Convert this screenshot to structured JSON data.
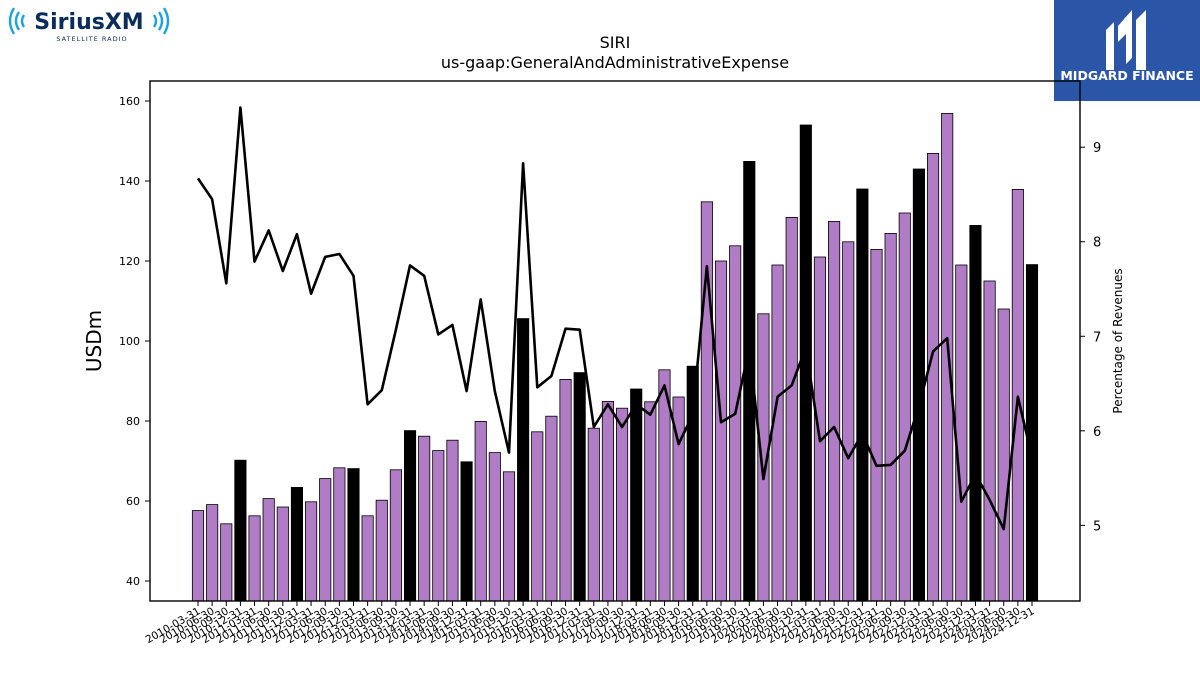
{
  "brand_left": {
    "name": "SiriusXM",
    "tagline": "SATELLITE RADIO",
    "accent": "#1aa3dc",
    "text_color": "#0b2d5c"
  },
  "brand_right": {
    "name": "MIDGARD FINANCE",
    "background": "#2b56a8"
  },
  "chart_data": {
    "type": "bar",
    "title": "SIRI",
    "subtitle": "us-gaap:GeneralAndAdministrativeExpense",
    "ylabel": "USDm",
    "y2label": "Percentage of Revenues",
    "ylim": [
      35,
      165
    ],
    "y2lim": [
      4.2,
      9.7
    ],
    "yticks": [
      40,
      60,
      80,
      100,
      120,
      140,
      160
    ],
    "y2ticks": [
      5,
      6,
      7,
      8,
      9
    ],
    "colors": {
      "quarter_bar": "#b07cc6",
      "annual_bar": "#000000",
      "line": "#000000"
    },
    "categories": [
      "2010-03-31",
      "2010-06-30",
      "2010-09-30",
      "2010-12-31",
      "2011-03-31",
      "2011-06-30",
      "2011-09-30",
      "2011-12-31",
      "2012-03-31",
      "2012-06-30",
      "2012-09-30",
      "2012-12-31",
      "2013-03-31",
      "2013-06-30",
      "2013-09-30",
      "2013-12-31",
      "2014-03-31",
      "2014-06-30",
      "2014-09-30",
      "2014-12-31",
      "2015-03-31",
      "2015-06-30",
      "2015-09-30",
      "2015-12-31",
      "2016-03-31",
      "2016-06-30",
      "2016-09-30",
      "2016-12-31",
      "2017-03-31",
      "2017-06-30",
      "2017-09-30",
      "2017-12-31",
      "2018-03-31",
      "2018-06-30",
      "2018-09-30",
      "2018-12-31",
      "2019-03-31",
      "2019-06-30",
      "2019-09-30",
      "2019-12-31",
      "2020-03-31",
      "2020-06-30",
      "2020-09-30",
      "2020-12-31",
      "2021-03-31",
      "2021-06-30",
      "2021-09-30",
      "2021-12-31",
      "2022-03-31",
      "2022-06-30",
      "2022-09-30",
      "2022-12-31",
      "2023-03-31",
      "2023-06-30",
      "2023-09-30",
      "2023-12-31",
      "2024-03-31",
      "2024-06-30",
      "2024-09-30",
      "2024-12-31"
    ],
    "annual_flags": [
      0,
      0,
      0,
      1,
      0,
      0,
      0,
      1,
      0,
      0,
      0,
      1,
      0,
      0,
      0,
      1,
      0,
      0,
      0,
      1,
      0,
      0,
      0,
      1,
      0,
      0,
      0,
      1,
      0,
      0,
      0,
      1,
      0,
      0,
      0,
      1,
      0,
      0,
      0,
      1,
      0,
      0,
      0,
      1,
      0,
      0,
      0,
      1,
      0,
      0,
      0,
      1,
      0,
      0,
      0,
      1,
      0,
      0,
      0,
      1
    ],
    "series": [
      {
        "type": "bar",
        "axis": "left",
        "values": [
          57.6,
          59.1,
          54.3,
          70.2,
          56.3,
          60.6,
          58.5,
          63.4,
          59.8,
          65.6,
          68.3,
          68.1,
          56.3,
          60.2,
          67.8,
          77.6,
          76.2,
          72.6,
          75.2,
          69.8,
          79.9,
          72.1,
          67.3,
          105.6,
          77.3,
          81.2,
          90.4,
          92.1,
          78.2,
          84.9,
          83.2,
          88.0,
          84.8,
          92.8,
          86.0,
          93.7,
          134.8,
          120.0,
          123.8,
          144.9,
          106.8,
          119.0,
          130.9,
          154.0,
          121.0,
          129.9,
          124.8,
          138.0,
          122.9,
          126.9,
          132.0,
          143.0,
          146.9,
          156.9,
          119.0,
          128.9,
          115.0,
          108.0,
          137.9,
          119.1
        ]
      },
      {
        "type": "line",
        "axis": "right",
        "values": [
          8.67,
          8.45,
          7.56,
          9.42,
          7.79,
          8.12,
          7.69,
          8.08,
          7.45,
          7.84,
          7.87,
          7.64,
          6.28,
          6.43,
          7.07,
          7.75,
          7.64,
          7.02,
          7.12,
          6.42,
          7.39,
          6.42,
          5.77,
          8.83,
          6.46,
          6.58,
          7.08,
          7.07,
          6.04,
          6.28,
          6.04,
          6.28,
          6.17,
          6.48,
          5.86,
          6.17,
          7.74,
          6.09,
          6.18,
          6.88,
          5.49,
          6.36,
          6.48,
          6.88,
          5.89,
          6.04,
          5.71,
          5.97,
          5.63,
          5.64,
          5.79,
          6.26,
          6.84,
          6.98,
          5.25,
          5.54,
          5.27,
          4.96,
          6.36,
          5.72
        ]
      }
    ]
  }
}
